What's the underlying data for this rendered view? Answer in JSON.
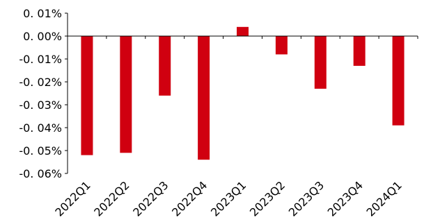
{
  "chart_data": {
    "type": "bar",
    "categories": [
      "2022Q1",
      "2022Q2",
      "2022Q3",
      "2022Q4",
      "2023Q1",
      "2023Q2",
      "2023Q3",
      "2023Q4",
      "2024Q1"
    ],
    "values": [
      -0.052,
      -0.051,
      -0.026,
      -0.054,
      0.004,
      -0.008,
      -0.023,
      -0.013,
      -0.039
    ],
    "ylim": [
      -0.06,
      0.01
    ],
    "yticks": [
      0.01,
      0.0,
      -0.01,
      -0.02,
      -0.03,
      -0.04,
      -0.05,
      -0.06
    ],
    "ytick_labels": [
      "0. 01%",
      "0. 00%",
      "-0. 01%",
      "-0. 02%",
      "-0. 03%",
      "-0. 04%",
      "-0. 05%",
      "-0. 06%"
    ],
    "xtick_labels": [
      "2022Q1",
      "2022Q2",
      "2022Q3",
      "2022Q4",
      "2023Q1",
      "2023Q2",
      "2023Q3",
      "2023Q4",
      "2024Q1"
    ],
    "unit": "%",
    "bar_color": "#d00010",
    "axis_color": "#000000",
    "grid": false,
    "legend": "none"
  }
}
